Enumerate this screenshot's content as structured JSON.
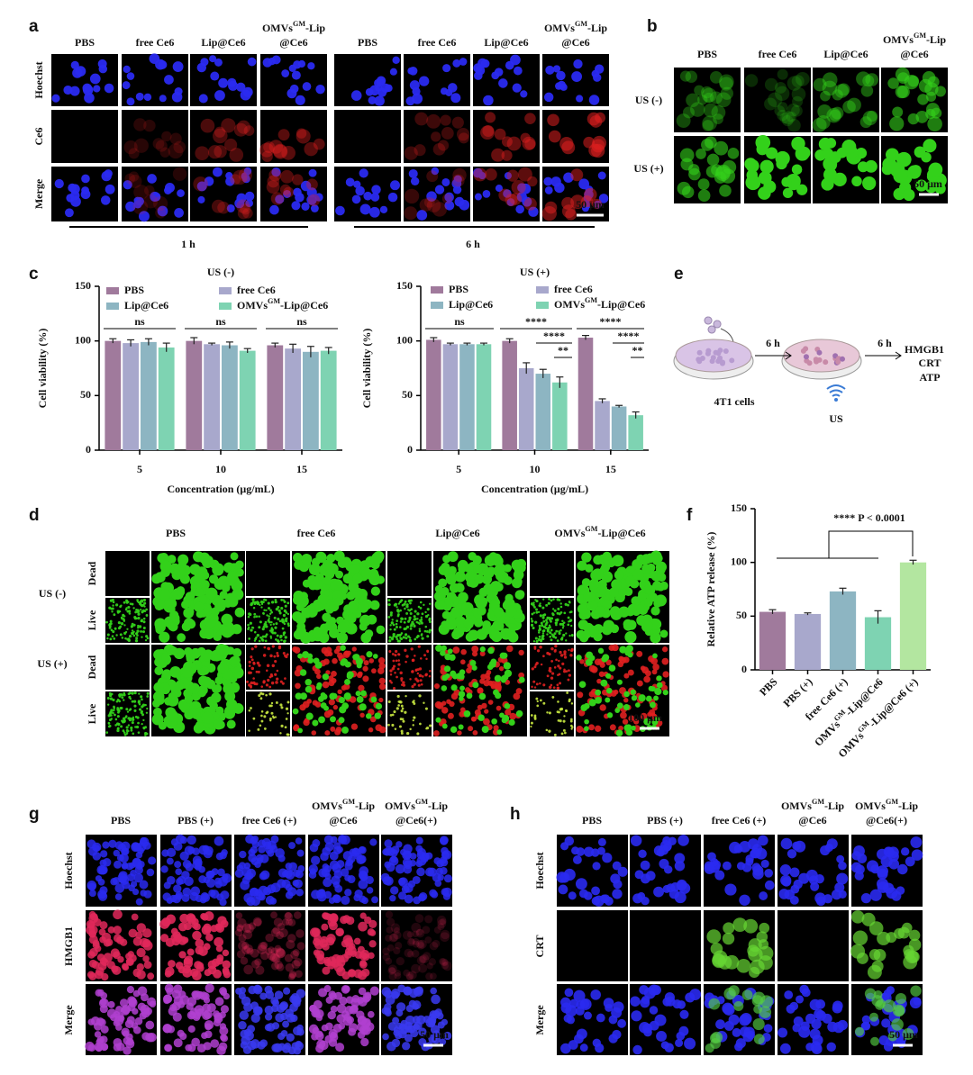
{
  "panels": {
    "a": {
      "label": "a",
      "columns": [
        "PBS",
        "free Ce6",
        "Lip@Ce6",
        [
          "OMVsGM-Lip",
          "@Ce6"
        ],
        "PBS",
        "free Ce6",
        "Lip@Ce6",
        [
          "OMVsGM-Lip",
          "@Ce6"
        ]
      ],
      "rows": [
        "Hoechst",
        "Ce6",
        "Merge"
      ],
      "groups": [
        "1 h",
        "6 h"
      ],
      "scale": "50 μm"
    },
    "b": {
      "label": "b",
      "columns": [
        "PBS",
        "free Ce6",
        "Lip@Ce6",
        [
          "OMVsGM-Lip",
          "@Ce6"
        ]
      ],
      "rows": [
        "US (-)",
        "US (+)"
      ],
      "scale": "50 μm"
    },
    "c": {
      "label": "c"
    },
    "d": {
      "label": "d",
      "columns": [
        "PBS",
        "free Ce6",
        "Lip@Ce6",
        "OMVsGM-Lip@Ce6"
      ],
      "rows": [
        "US (-)",
        "US (+)"
      ],
      "subrows": [
        "Dead",
        "Live"
      ],
      "scale": "100 μm"
    },
    "e": {
      "label": "e",
      "cells": "4T1 cells",
      "times": [
        "6 h",
        "6 h"
      ],
      "outputs": [
        "HMGB1",
        "CRT",
        "ATP"
      ],
      "stimulus": "US"
    },
    "f": {
      "label": "f"
    },
    "g": {
      "label": "g",
      "columns": [
        "PBS",
        "PBS (+)",
        "free Ce6 (+)",
        [
          "OMVsGM-Lip",
          "@Ce6"
        ],
        [
          "OMVsGM-Lip",
          "@Ce6(+)"
        ]
      ],
      "rows": [
        "Hoechst",
        "HMGB1",
        "Merge"
      ],
      "scale": "50 μm"
    },
    "h": {
      "label": "h",
      "columns": [
        "PBS",
        "PBS (+)",
        "free Ce6 (+)",
        [
          "OMVsGM-Lip",
          "@Ce6"
        ],
        [
          "OMVsGM-Lip",
          "@Ce6(+)"
        ]
      ],
      "rows": [
        "Hoechst",
        "CRT",
        "Merge"
      ],
      "scale": "50 μm"
    }
  },
  "chart_data": [
    {
      "type": "bar",
      "title": "US (-)",
      "x_label": "Concentration (μg/mL)",
      "y_label": "Cell viability (%)",
      "categories": [
        "5",
        "10",
        "15"
      ],
      "series": [
        {
          "name": "PBS",
          "color": "#a07a9c",
          "values": [
            100,
            100,
            96
          ],
          "errors": [
            2,
            3,
            2
          ]
        },
        {
          "name": "free Ce6",
          "color": "#a8a8cc",
          "values": [
            98,
            97,
            93
          ],
          "errors": [
            3,
            1,
            4
          ]
        },
        {
          "name": "Lip@Ce6",
          "color": "#8db5c2",
          "values": [
            99,
            96,
            90
          ],
          "errors": [
            3,
            3,
            5
          ]
        },
        {
          "name": "OMVsGM-Lip@Ce6",
          "color": "#7ed3b2",
          "values": [
            94,
            91,
            91
          ],
          "errors": [
            4,
            2,
            3
          ]
        }
      ],
      "ylim": [
        0,
        150
      ],
      "yticks": [
        0,
        50,
        100,
        150
      ],
      "annotations": [
        "ns",
        "ns",
        "ns"
      ]
    },
    {
      "type": "bar",
      "title": "US (+)",
      "x_label": "Concentration (μg/mL)",
      "y_label": "Cell viability (%)",
      "categories": [
        "5",
        "10",
        "15"
      ],
      "series": [
        {
          "name": "PBS",
          "color": "#a07a9c",
          "values": [
            101,
            100,
            103
          ],
          "errors": [
            2,
            2,
            2
          ]
        },
        {
          "name": "free Ce6",
          "color": "#a8a8cc",
          "values": [
            97,
            75,
            45
          ],
          "errors": [
            1,
            5,
            2
          ]
        },
        {
          "name": "Lip@Ce6",
          "color": "#8db5c2",
          "values": [
            97,
            70,
            40
          ],
          "errors": [
            1,
            4,
            1
          ]
        },
        {
          "name": "OMVsGM-Lip@Ce6",
          "color": "#7ed3b2",
          "values": [
            97,
            62,
            32
          ],
          "errors": [
            1,
            5,
            3
          ]
        }
      ],
      "ylim": [
        0,
        150
      ],
      "yticks": [
        0,
        50,
        100,
        150
      ],
      "annotations": [
        "ns",
        "****",
        "****",
        "**",
        "****",
        "****",
        "**"
      ]
    },
    {
      "type": "bar",
      "y_label": "Relative ATP release (%)",
      "categories": [
        "PBS",
        "PBS (+)",
        "free Ce6 (+)",
        "OMVsGM-Lip@Ce6",
        "OMVsGM-Lip@Ce6 (+)"
      ],
      "values": [
        54,
        52,
        73,
        49,
        100
      ],
      "errors": [
        2,
        1,
        3,
        6,
        2
      ],
      "colors": [
        "#a07a9c",
        "#a8a8cc",
        "#8db5c2",
        "#7ed3b2",
        "#b3e6a0"
      ],
      "ylim": [
        0,
        150
      ],
      "yticks": [
        0,
        50,
        100,
        150
      ],
      "annotation": "**** P < 0.0001"
    }
  ]
}
